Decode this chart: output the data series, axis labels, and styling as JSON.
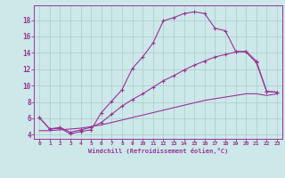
{
  "background_color": "#cce8e8",
  "grid_color": "#aacccc",
  "line_color": "#993399",
  "x_ticks": [
    0,
    1,
    2,
    3,
    4,
    5,
    6,
    7,
    8,
    9,
    10,
    11,
    12,
    13,
    14,
    15,
    16,
    17,
    18,
    19,
    20,
    21,
    22,
    23
  ],
  "xlim": [
    -0.5,
    23.5
  ],
  "ylim": [
    3.5,
    19.8
  ],
  "y_ticks": [
    4,
    6,
    8,
    10,
    12,
    14,
    16,
    18
  ],
  "xlabel": "Windchill (Refroidissement éolien,°C)",
  "series1_x": [
    0,
    1,
    2,
    3,
    4,
    5,
    6,
    7,
    8,
    9,
    10,
    11,
    12,
    13,
    14,
    15,
    16,
    17,
    18,
    19,
    20,
    21,
    22,
    23
  ],
  "series1_y": [
    6.1,
    4.7,
    4.8,
    4.1,
    4.4,
    4.6,
    6.7,
    8.1,
    9.5,
    12.1,
    13.5,
    15.2,
    17.9,
    18.3,
    18.8,
    19.0,
    18.8,
    17.0,
    16.7,
    14.2,
    14.1,
    12.8,
    9.3,
    9.2
  ],
  "series2_x": [
    0,
    1,
    2,
    3,
    4,
    5,
    6,
    7,
    8,
    9,
    10,
    11,
    12,
    13,
    14,
    15,
    16,
    17,
    18,
    19,
    20,
    21,
    22,
    23
  ],
  "series2_y": [
    6.1,
    4.7,
    4.9,
    4.3,
    4.6,
    4.9,
    5.5,
    6.5,
    7.5,
    8.3,
    9.0,
    9.8,
    10.6,
    11.2,
    11.9,
    12.5,
    13.0,
    13.5,
    13.8,
    14.1,
    14.2,
    13.0,
    9.3,
    9.2
  ],
  "series3_x": [
    0,
    1,
    2,
    3,
    4,
    5,
    6,
    7,
    8,
    9,
    10,
    11,
    12,
    13,
    14,
    15,
    16,
    17,
    18,
    19,
    20,
    21,
    22,
    23
  ],
  "series3_y": [
    4.5,
    4.5,
    4.6,
    4.7,
    4.8,
    5.0,
    5.2,
    5.5,
    5.8,
    6.1,
    6.4,
    6.7,
    7.0,
    7.3,
    7.6,
    7.9,
    8.2,
    8.4,
    8.6,
    8.8,
    9.0,
    9.0,
    8.8,
    9.0
  ]
}
